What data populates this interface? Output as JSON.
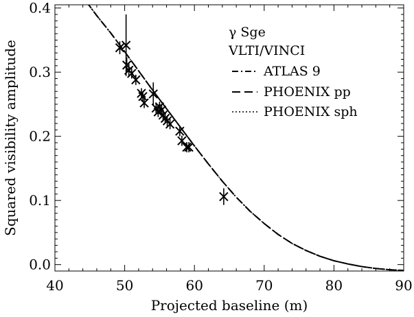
{
  "chart_data": {
    "type": "scatter",
    "title": "",
    "xlabel": "Projected baseline (m)",
    "ylabel": "Squared visibility amplitude",
    "xlim": [
      40,
      90
    ],
    "ylim": [
      -0.01,
      0.405
    ],
    "x_ticks": [
      40,
      50,
      60,
      70,
      80,
      90
    ],
    "y_ticks": [
      0.0,
      0.1,
      0.2,
      0.3,
      0.4
    ],
    "x_tick_labels": [
      "40",
      "50",
      "60",
      "70",
      "80",
      "90"
    ],
    "y_tick_labels": [
      "0.0",
      "0.1",
      "0.2",
      "0.3",
      "0.4"
    ],
    "grid": false,
    "legend_position": "top-right",
    "legend_header": [
      "γ Sge",
      "VLTI/VINCI"
    ],
    "legend": [
      {
        "label": "ATLAS 9",
        "style": "dash-dot"
      },
      {
        "label": "PHOENIX pp",
        "style": "dashed"
      },
      {
        "label": "PHOENIX sph",
        "style": "dotted"
      }
    ],
    "models": [
      {
        "name": "ATLAS 9",
        "x": [
          44.5,
          46,
          48,
          50,
          52,
          54,
          56,
          58,
          60,
          62,
          64,
          66,
          68,
          70,
          72,
          74,
          76,
          78,
          80,
          82,
          84,
          86,
          88,
          90
        ],
        "y": [
          0.41,
          0.388,
          0.361,
          0.332,
          0.302,
          0.272,
          0.243,
          0.214,
          0.185,
          0.157,
          0.13,
          0.105,
          0.083,
          0.064,
          0.047,
          0.033,
          0.022,
          0.013,
          0.006,
          0.001,
          -0.003,
          -0.006,
          -0.008,
          -0.009
        ]
      },
      {
        "name": "PHOENIX pp",
        "x": [
          44.5,
          46,
          48,
          50,
          52,
          54,
          56,
          58,
          60,
          62,
          64,
          66,
          68,
          70,
          72,
          74,
          76,
          78,
          80,
          82,
          84,
          86,
          88,
          90
        ],
        "y": [
          0.41,
          0.388,
          0.361,
          0.332,
          0.302,
          0.272,
          0.243,
          0.214,
          0.185,
          0.157,
          0.13,
          0.105,
          0.083,
          0.064,
          0.047,
          0.033,
          0.022,
          0.013,
          0.006,
          0.001,
          -0.003,
          -0.006,
          -0.008,
          -0.009
        ]
      },
      {
        "name": "PHOENIX sph",
        "x": [
          44.5,
          46,
          48,
          50,
          52,
          54,
          56,
          58,
          60,
          62,
          64,
          66,
          68,
          70,
          72,
          74,
          76,
          78,
          80,
          82,
          84,
          86,
          88,
          90
        ],
        "y": [
          0.41,
          0.388,
          0.361,
          0.332,
          0.302,
          0.272,
          0.243,
          0.214,
          0.185,
          0.157,
          0.13,
          0.105,
          0.083,
          0.064,
          0.047,
          0.033,
          0.022,
          0.013,
          0.006,
          0.001,
          -0.003,
          -0.006,
          -0.008,
          -0.009
        ]
      }
    ],
    "points": [
      {
        "x": 49.3,
        "y": 0.338,
        "err": 0.01
      },
      {
        "x": 50.2,
        "y": 0.342,
        "err": 0.048
      },
      {
        "x": 50.3,
        "y": 0.311,
        "err": 0.012
      },
      {
        "x": 50.6,
        "y": 0.303,
        "err": 0.01
      },
      {
        "x": 51.0,
        "y": 0.298,
        "err": 0.008
      },
      {
        "x": 51.6,
        "y": 0.288,
        "err": 0.008
      },
      {
        "x": 52.4,
        "y": 0.267,
        "err": 0.008
      },
      {
        "x": 52.6,
        "y": 0.262,
        "err": 0.008
      },
      {
        "x": 52.8,
        "y": 0.252,
        "err": 0.008
      },
      {
        "x": 54.1,
        "y": 0.266,
        "err": 0.018
      },
      {
        "x": 54.5,
        "y": 0.244,
        "err": 0.008
      },
      {
        "x": 54.8,
        "y": 0.238,
        "err": 0.008
      },
      {
        "x": 55.0,
        "y": 0.246,
        "err": 0.008
      },
      {
        "x": 55.3,
        "y": 0.241,
        "err": 0.008
      },
      {
        "x": 55.5,
        "y": 0.233,
        "err": 0.008
      },
      {
        "x": 55.8,
        "y": 0.228,
        "err": 0.008
      },
      {
        "x": 56.1,
        "y": 0.224,
        "err": 0.008
      },
      {
        "x": 56.5,
        "y": 0.219,
        "err": 0.008
      },
      {
        "x": 57.9,
        "y": 0.208,
        "err": 0.008
      },
      {
        "x": 58.2,
        "y": 0.193,
        "err": 0.008
      },
      {
        "x": 58.9,
        "y": 0.183,
        "err": 0.008
      },
      {
        "x": 59.2,
        "y": 0.183,
        "err": 0.008
      },
      {
        "x": 64.2,
        "y": 0.106,
        "err": 0.013
      }
    ]
  }
}
